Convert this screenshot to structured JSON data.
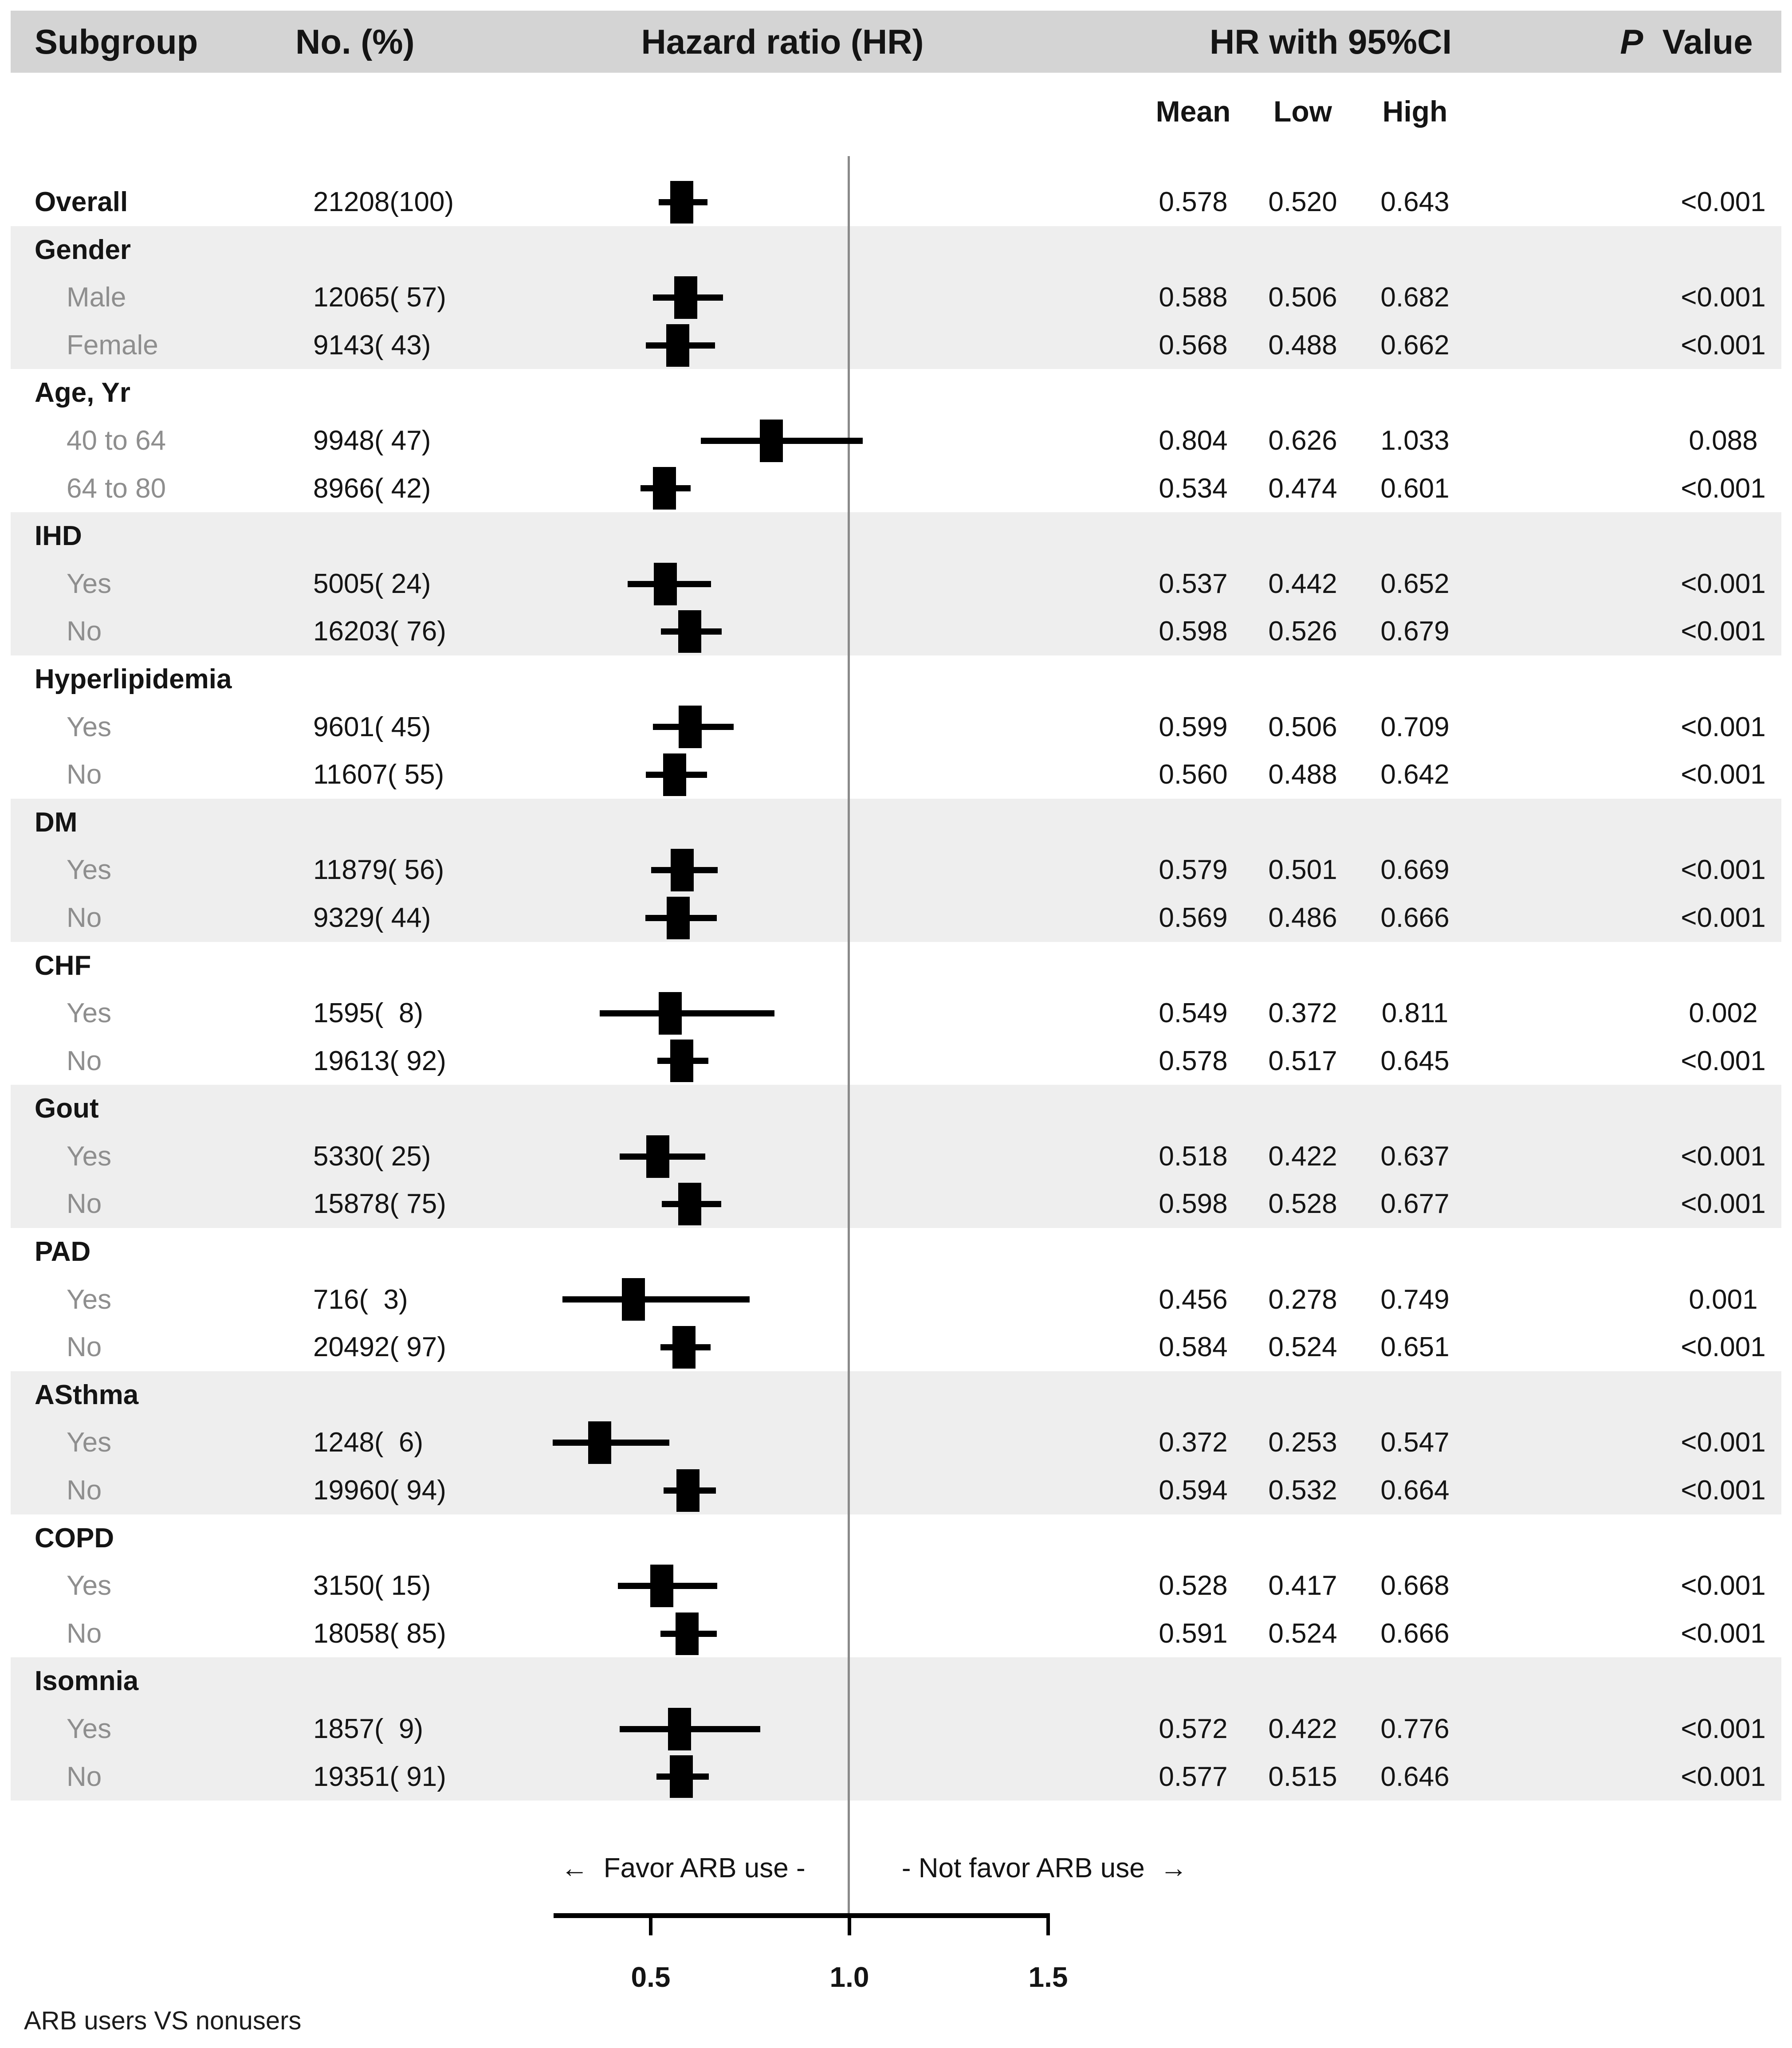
{
  "header": {
    "subgroup": "Subgroup",
    "n_pct": "No. (%)",
    "hazard_ratio": "Hazard ratio (HR)",
    "hr_ci": "HR with 95%CI",
    "p_italic": "P",
    "p_rest": "  Value"
  },
  "subheader": {
    "mean": "Mean",
    "low": "Low",
    "high": "High"
  },
  "axis_labels": {
    "favor_left": "←  Favor ARB use -",
    "favor_right": "- Not favor ARB use  →"
  },
  "footer": "ARB users VS nonusers",
  "colors": {
    "header_bar": "#d4d4d4",
    "band_shaded": "#eeeeee",
    "muted_label": "#8e8e8e",
    "text": "#141414",
    "marker": "#000000",
    "refline": "#8a8a8a"
  },
  "chart_data": {
    "type": "forest",
    "title": "",
    "xlabel": "Hazard ratio (HR)",
    "axis": {
      "ticks": [
        "0.5",
        "1.0",
        "1.5"
      ],
      "tick_values": [
        0.5,
        1.0,
        1.5
      ],
      "range": [
        0.26,
        1.5
      ],
      "ref_value": 1.0
    },
    "sections": [
      {
        "title": null,
        "shaded": false,
        "rows": [
          {
            "label": "Overall",
            "n_pct": "21208(100)",
            "hr": 0.578,
            "ci": [
              0.52,
              0.643
            ],
            "mean": "0.578",
            "low": "0.520",
            "high": "0.643",
            "p": "<0.001"
          }
        ]
      },
      {
        "title": "Gender",
        "shaded": true,
        "rows": [
          {
            "label": "Male",
            "n_pct": "12065( 57)",
            "hr": 0.588,
            "ci": [
              0.506,
              0.682
            ],
            "mean": "0.588",
            "low": "0.506",
            "high": "0.682",
            "p": "<0.001"
          },
          {
            "label": "Female",
            "n_pct": "9143( 43)",
            "hr": 0.568,
            "ci": [
              0.488,
              0.662
            ],
            "mean": "0.568",
            "low": "0.488",
            "high": "0.662",
            "p": "<0.001"
          }
        ]
      },
      {
        "title": "Age, Yr",
        "shaded": false,
        "rows": [
          {
            "label": "40 to 64",
            "n_pct": "9948( 47)",
            "hr": 0.804,
            "ci": [
              0.626,
              1.033
            ],
            "mean": "0.804",
            "low": "0.626",
            "high": "1.033",
            "p": "0.088"
          },
          {
            "label": "64 to 80",
            "n_pct": "8966( 42)",
            "hr": 0.534,
            "ci": [
              0.474,
              0.601
            ],
            "mean": "0.534",
            "low": "0.474",
            "high": "0.601",
            "p": "<0.001"
          }
        ]
      },
      {
        "title": "IHD",
        "shaded": true,
        "rows": [
          {
            "label": "Yes",
            "n_pct": "5005( 24)",
            "hr": 0.537,
            "ci": [
              0.442,
              0.652
            ],
            "mean": "0.537",
            "low": "0.442",
            "high": "0.652",
            "p": "<0.001"
          },
          {
            "label": "No",
            "n_pct": "16203( 76)",
            "hr": 0.598,
            "ci": [
              0.526,
              0.679
            ],
            "mean": "0.598",
            "low": "0.526",
            "high": "0.679",
            "p": "<0.001"
          }
        ]
      },
      {
        "title": "Hyperlipidemia",
        "shaded": false,
        "rows": [
          {
            "label": "Yes",
            "n_pct": "9601( 45)",
            "hr": 0.599,
            "ci": [
              0.506,
              0.709
            ],
            "mean": "0.599",
            "low": "0.506",
            "high": "0.709",
            "p": "<0.001"
          },
          {
            "label": "No",
            "n_pct": "11607( 55)",
            "hr": 0.56,
            "ci": [
              0.488,
              0.642
            ],
            "mean": "0.560",
            "low": "0.488",
            "high": "0.642",
            "p": "<0.001"
          }
        ]
      },
      {
        "title": "DM",
        "shaded": true,
        "rows": [
          {
            "label": "Yes",
            "n_pct": "11879( 56)",
            "hr": 0.579,
            "ci": [
              0.501,
              0.669
            ],
            "mean": "0.579",
            "low": "0.501",
            "high": "0.669",
            "p": "<0.001"
          },
          {
            "label": "No",
            "n_pct": "9329( 44)",
            "hr": 0.569,
            "ci": [
              0.486,
              0.666
            ],
            "mean": "0.569",
            "low": "0.486",
            "high": "0.666",
            "p": "<0.001"
          }
        ]
      },
      {
        "title": "CHF",
        "shaded": false,
        "rows": [
          {
            "label": "Yes",
            "n_pct": "1595(  8)",
            "hr": 0.549,
            "ci": [
              0.372,
              0.811
            ],
            "mean": "0.549",
            "low": "0.372",
            "high": "0.811",
            "p": "0.002"
          },
          {
            "label": "No",
            "n_pct": "19613( 92)",
            "hr": 0.578,
            "ci": [
              0.517,
              0.645
            ],
            "mean": "0.578",
            "low": "0.517",
            "high": "0.645",
            "p": "<0.001"
          }
        ]
      },
      {
        "title": "Gout",
        "shaded": true,
        "rows": [
          {
            "label": "Yes",
            "n_pct": "5330( 25)",
            "hr": 0.518,
            "ci": [
              0.422,
              0.637
            ],
            "mean": "0.518",
            "low": "0.422",
            "high": "0.637",
            "p": "<0.001"
          },
          {
            "label": "No",
            "n_pct": "15878( 75)",
            "hr": 0.598,
            "ci": [
              0.528,
              0.677
            ],
            "mean": "0.598",
            "low": "0.528",
            "high": "0.677",
            "p": "<0.001"
          }
        ]
      },
      {
        "title": "PAD",
        "shaded": false,
        "rows": [
          {
            "label": "Yes",
            "n_pct": "716(  3)",
            "hr": 0.456,
            "ci": [
              0.278,
              0.749
            ],
            "mean": "0.456",
            "low": "0.278",
            "high": "0.749",
            "p": "0.001"
          },
          {
            "label": "No",
            "n_pct": "20492( 97)",
            "hr": 0.584,
            "ci": [
              0.524,
              0.651
            ],
            "mean": "0.584",
            "low": "0.524",
            "high": "0.651",
            "p": "<0.001"
          }
        ]
      },
      {
        "title": "ASthma",
        "shaded": true,
        "rows": [
          {
            "label": "Yes",
            "n_pct": "1248(  6)",
            "hr": 0.372,
            "ci": [
              0.253,
              0.547
            ],
            "mean": "0.372",
            "low": "0.253",
            "high": "0.547",
            "p": "<0.001"
          },
          {
            "label": "No",
            "n_pct": "19960( 94)",
            "hr": 0.594,
            "ci": [
              0.532,
              0.664
            ],
            "mean": "0.594",
            "low": "0.532",
            "high": "0.664",
            "p": "<0.001"
          }
        ]
      },
      {
        "title": "COPD",
        "shaded": false,
        "rows": [
          {
            "label": "Yes",
            "n_pct": "3150( 15)",
            "hr": 0.528,
            "ci": [
              0.417,
              0.668
            ],
            "mean": "0.528",
            "low": "0.417",
            "high": "0.668",
            "p": "<0.001"
          },
          {
            "label": "No",
            "n_pct": "18058( 85)",
            "hr": 0.591,
            "ci": [
              0.524,
              0.666
            ],
            "mean": "0.591",
            "low": "0.524",
            "high": "0.666",
            "p": "<0.001"
          }
        ]
      },
      {
        "title": "Isomnia",
        "shaded": true,
        "rows": [
          {
            "label": "Yes",
            "n_pct": "1857(  9)",
            "hr": 0.572,
            "ci": [
              0.422,
              0.776
            ],
            "mean": "0.572",
            "low": "0.422",
            "high": "0.776",
            "p": "<0.001"
          },
          {
            "label": "No",
            "n_pct": "19351( 91)",
            "hr": 0.577,
            "ci": [
              0.515,
              0.646
            ],
            "mean": "0.577",
            "low": "0.515",
            "high": "0.646",
            "p": "<0.001"
          }
        ]
      }
    ]
  }
}
